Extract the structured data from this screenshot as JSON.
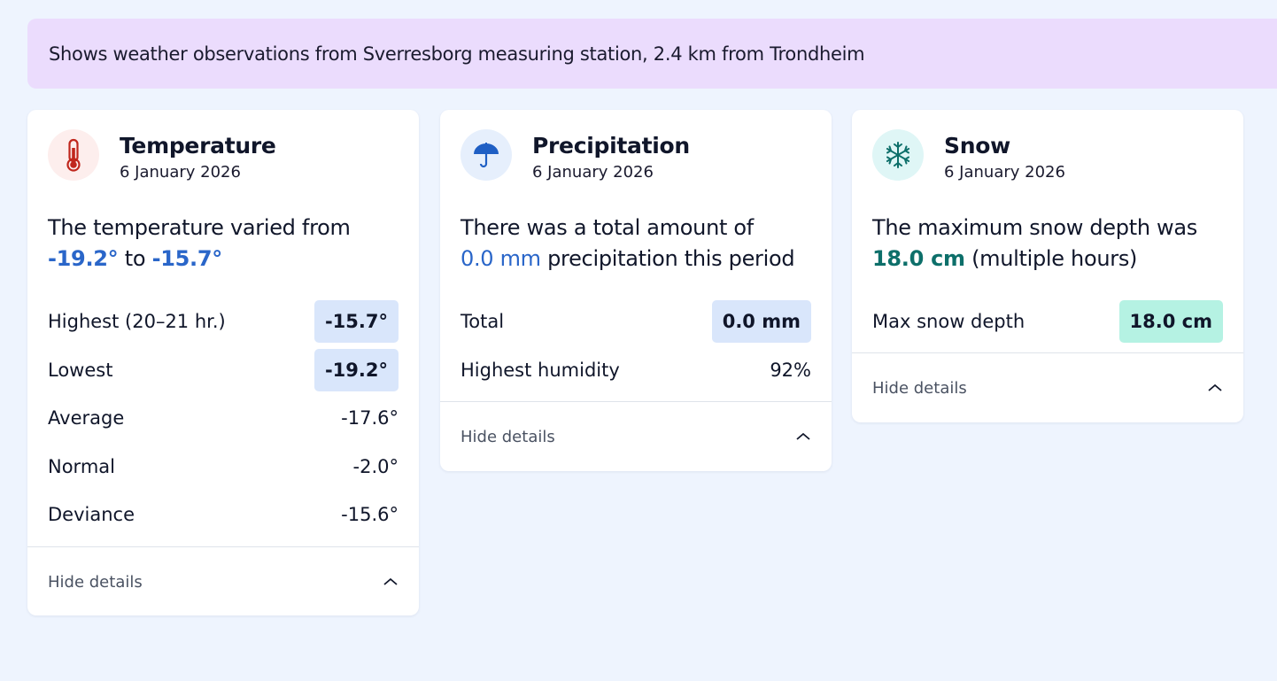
{
  "banner": {
    "text": "Shows weather observations from Sverresborg measuring station, 2.4 km from Trondheim"
  },
  "colors": {
    "background": "#eef4fe",
    "banner": "#ebdcfd",
    "accent_blue": "#2a66c9",
    "accent_teal": "#0d6f6a",
    "pill_blue": "#d9e6fb",
    "pill_teal": "#b5f2e3"
  },
  "temperature": {
    "icon": "thermometer-icon",
    "title": "Temperature",
    "date": "6 January 2026",
    "summary_prefix": "The temperature varied from",
    "summary_min": "-19.2°",
    "summary_mid": "to",
    "summary_max": "-15.7°",
    "rows": [
      {
        "label": "Highest (20–21 hr.)",
        "value": "-15.7°"
      },
      {
        "label": "Lowest",
        "value": "-19.2°"
      },
      {
        "label": "Average",
        "value": "-17.6°"
      },
      {
        "label": "Normal",
        "value": "-2.0°"
      },
      {
        "label": "Deviance",
        "value": "-15.6°"
      }
    ],
    "footer": "Hide details"
  },
  "precipitation": {
    "icon": "umbrella-icon",
    "title": "Precipitation",
    "date": "6 January 2026",
    "summary_prefix": "There was a total amount of",
    "summary_value": "0.0 mm",
    "summary_suffix": "precipitation this period",
    "rows": [
      {
        "label": "Total",
        "value": "0.0 mm"
      },
      {
        "label": "Highest humidity",
        "value": "92%"
      }
    ],
    "footer": "Hide details"
  },
  "snow": {
    "icon": "snowflake-icon",
    "title": "Snow",
    "date": "6 January 2026",
    "summary_prefix": "The maximum snow depth was",
    "summary_value": "18.0 cm",
    "summary_suffix": "(multiple hours)",
    "rows": [
      {
        "label": "Max snow depth",
        "value": "18.0 cm"
      }
    ],
    "footer": "Hide details"
  }
}
